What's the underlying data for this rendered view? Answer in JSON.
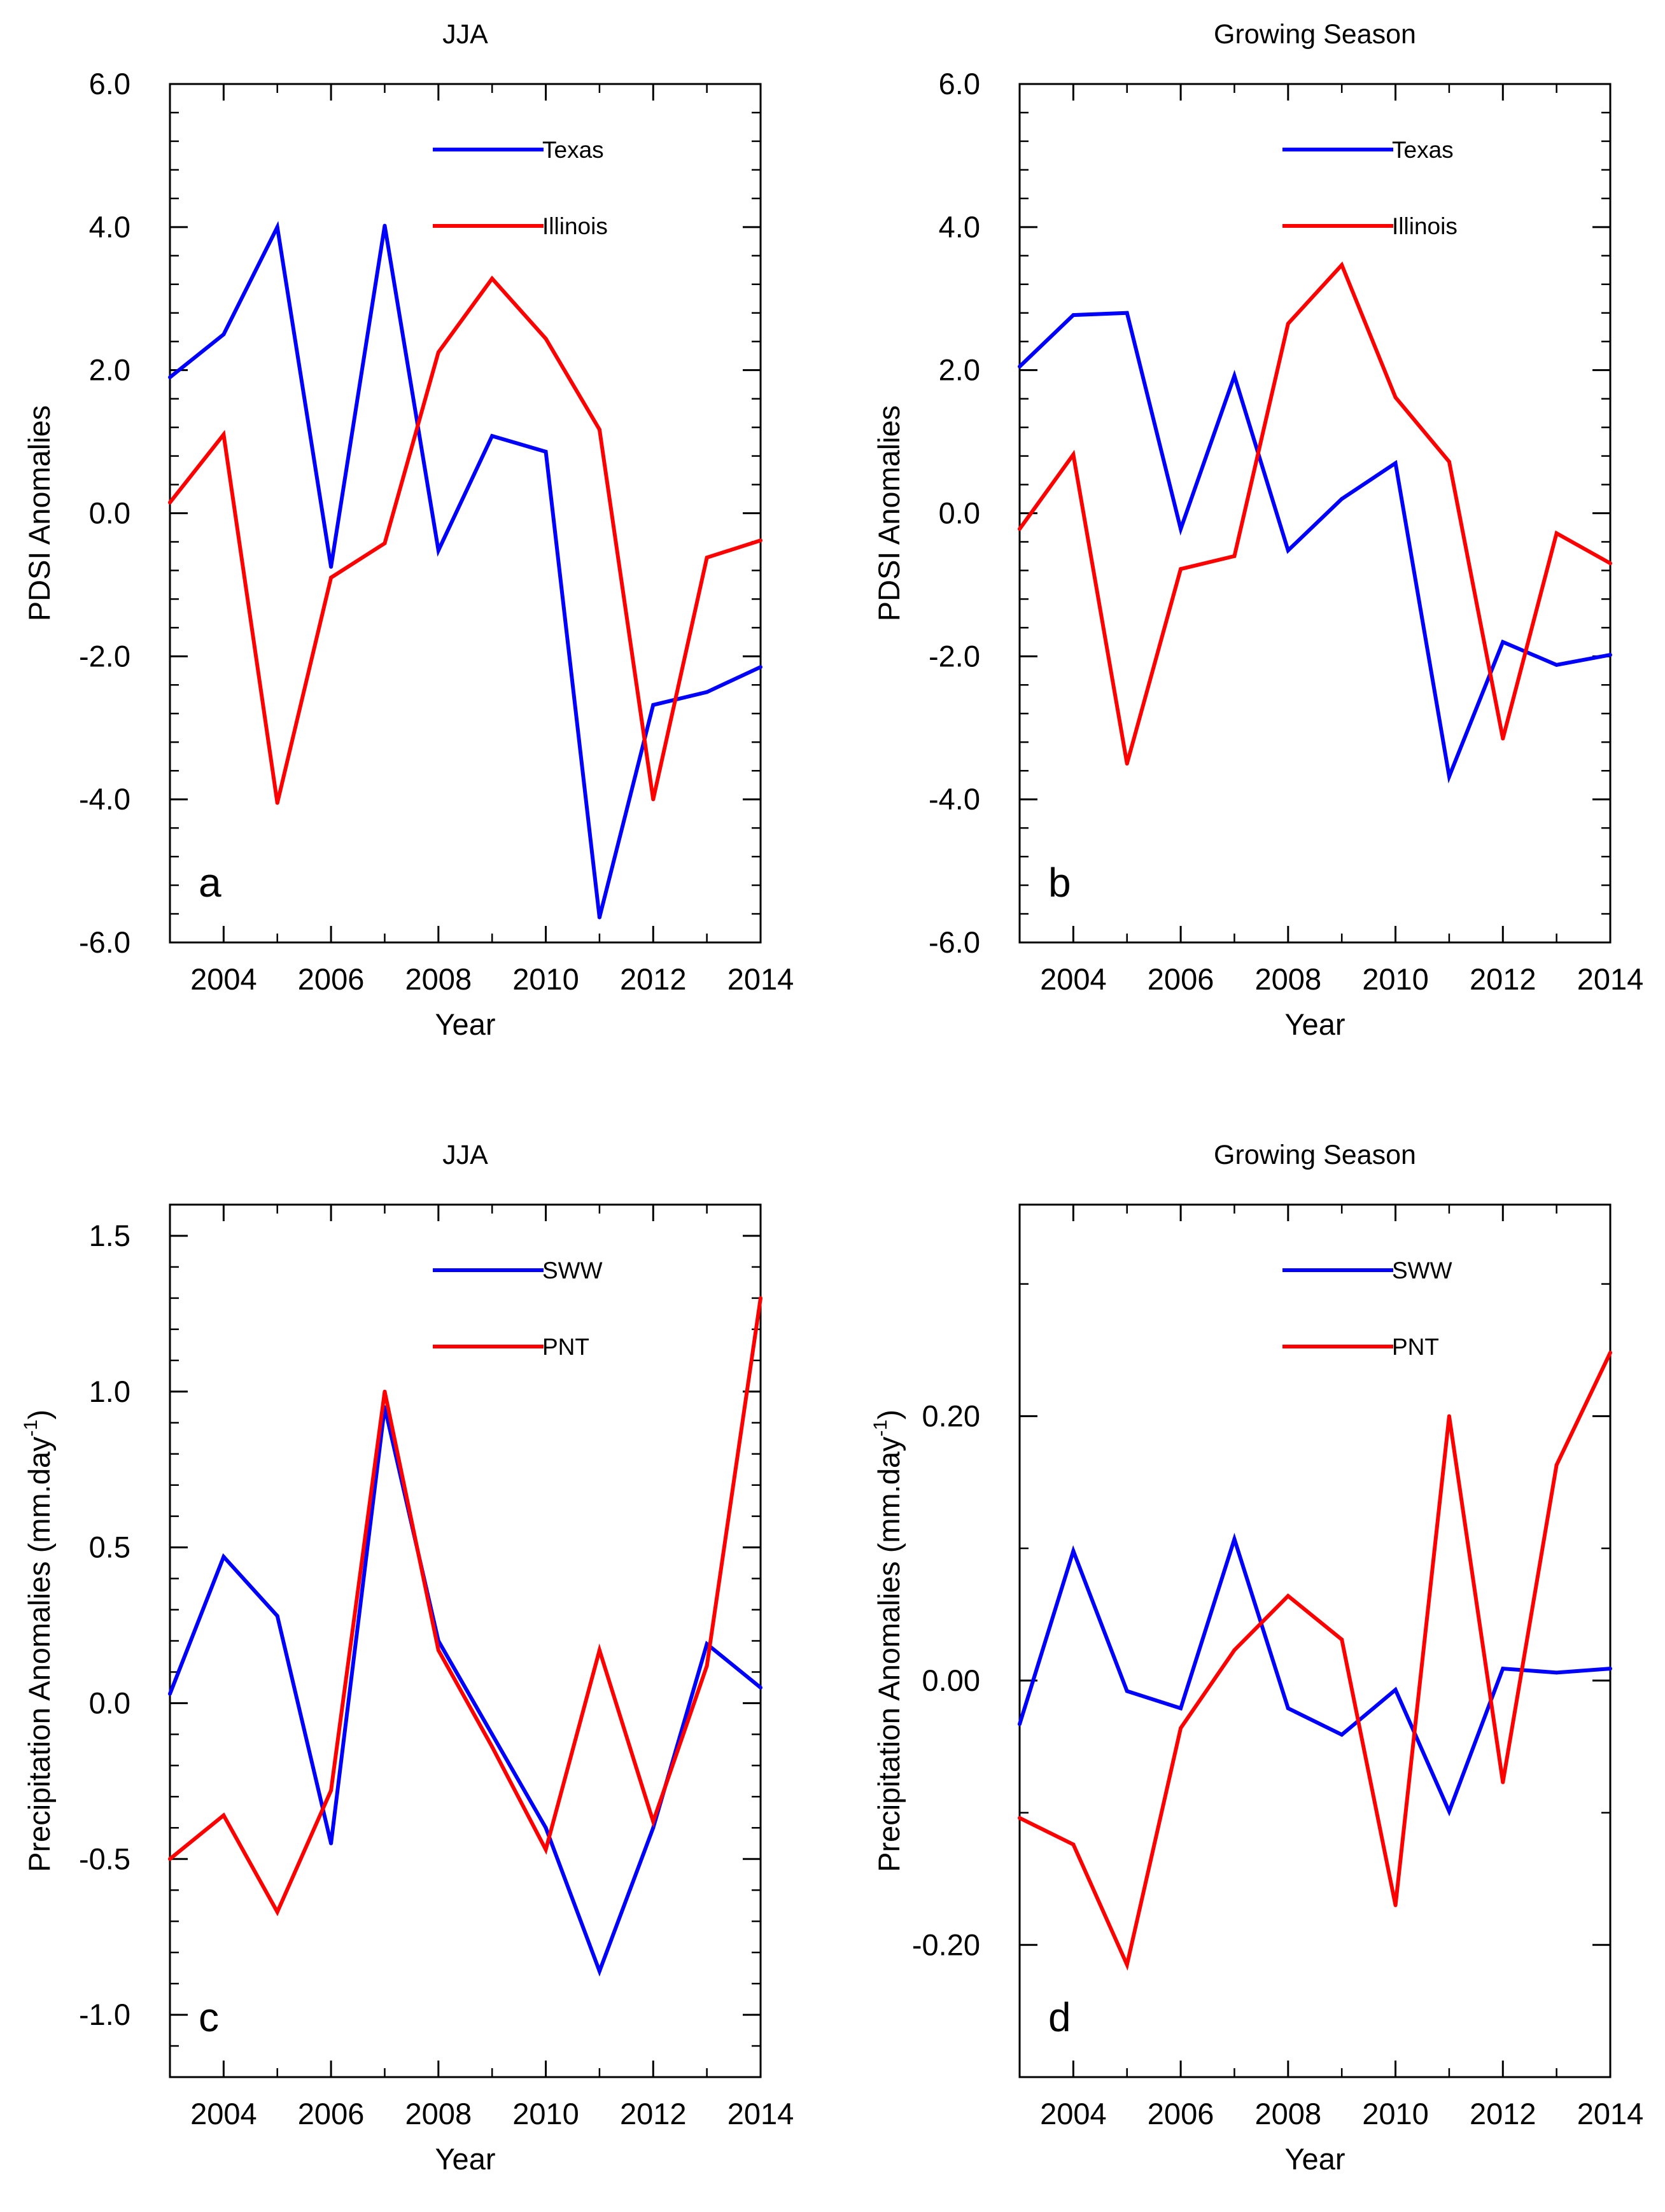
{
  "chart_data": [
    {
      "type": "line",
      "panel_label": "a",
      "title": "JJA",
      "xlabel": "Year",
      "ylabel": "PDSI Anomalies",
      "xlim": [
        2003,
        2014
      ],
      "ylim": [
        -6.0,
        6.0
      ],
      "x": [
        2003,
        2004,
        2005,
        2006,
        2007,
        2008,
        2009,
        2010,
        2011,
        2012,
        2013,
        2014
      ],
      "x_tick_values": [
        2004,
        2006,
        2008,
        2010,
        2012,
        2014
      ],
      "x_tick_labels": [
        "2004",
        "2006",
        "2008",
        "2010",
        "2012",
        "2014"
      ],
      "y_tick_values": [
        6.0,
        4.0,
        2.0,
        0.0,
        -2.0,
        -4.0,
        -6.0
      ],
      "y_tick_labels": [
        "6.0",
        "4.0",
        "2.0",
        "0.0",
        "-2.0",
        "-4.0",
        "-6.0"
      ],
      "y_minor_step": 0.4,
      "legend_position": "top-center",
      "series": [
        {
          "name": "Texas",
          "color": "#0000ff",
          "values": [
            1.9,
            2.5,
            4.0,
            -0.75,
            4.02,
            -0.52,
            1.08,
            0.86,
            -5.65,
            -2.68,
            -2.5,
            -2.15
          ]
        },
        {
          "name": "Illinois",
          "color": "#ff0000",
          "values": [
            0.15,
            1.1,
            -4.05,
            -0.9,
            -0.42,
            2.25,
            3.28,
            2.44,
            1.17,
            -4.0,
            -0.62,
            -0.38
          ]
        }
      ]
    },
    {
      "type": "line",
      "panel_label": "b",
      "title": "Growing Season",
      "xlabel": "Year",
      "ylabel": "PDSI Anomalies",
      "xlim": [
        2003,
        2014
      ],
      "ylim": [
        -6.0,
        6.0
      ],
      "x": [
        2003,
        2004,
        2005,
        2006,
        2007,
        2008,
        2009,
        2010,
        2011,
        2012,
        2013,
        2014
      ],
      "x_tick_values": [
        2004,
        2006,
        2008,
        2010,
        2012,
        2014
      ],
      "x_tick_labels": [
        "2004",
        "2006",
        "2008",
        "2010",
        "2012",
        "2014"
      ],
      "y_tick_values": [
        6.0,
        4.0,
        2.0,
        0.0,
        -2.0,
        -4.0,
        -6.0
      ],
      "y_tick_labels": [
        "6.0",
        "4.0",
        "2.0",
        "0.0",
        "-2.0",
        "-4.0",
        "-6.0"
      ],
      "y_minor_step": 0.4,
      "legend_position": "top-center",
      "series": [
        {
          "name": "Texas",
          "color": "#0000ff",
          "values": [
            2.05,
            2.77,
            2.8,
            -0.22,
            1.92,
            -0.52,
            0.2,
            0.7,
            -3.68,
            -1.8,
            -2.12,
            -1.98
          ]
        },
        {
          "name": "Illinois",
          "color": "#ff0000",
          "values": [
            -0.22,
            0.82,
            -3.5,
            -0.78,
            -0.6,
            2.65,
            3.47,
            1.62,
            0.72,
            -3.15,
            -0.28,
            -0.7
          ]
        }
      ]
    },
    {
      "type": "line",
      "panel_label": "c",
      "title": "JJA",
      "xlabel": "Year",
      "ylabel": "Precipitation Anomalies (mm.day",
      "ylabel_superscript": "-1",
      "ylabel_suffix": ")",
      "xlim": [
        2003,
        2014
      ],
      "ylim": [
        -1.2,
        1.6
      ],
      "x": [
        2003,
        2004,
        2005,
        2006,
        2007,
        2008,
        2009,
        2010,
        2011,
        2012,
        2013,
        2014
      ],
      "x_tick_values": [
        2004,
        2006,
        2008,
        2010,
        2012,
        2014
      ],
      "x_tick_labels": [
        "2004",
        "2006",
        "2008",
        "2010",
        "2012",
        "2014"
      ],
      "y_tick_values": [
        1.5,
        1.0,
        0.5,
        0.0,
        -0.5,
        -1.0
      ],
      "y_tick_labels": [
        "1.5",
        "1.0",
        "0.5",
        "0.0",
        "-0.5",
        "-1.0"
      ],
      "y_minor_step": 0.1,
      "legend_position": "top-center",
      "series": [
        {
          "name": "SWW",
          "color": "#0000ff",
          "values": [
            0.03,
            0.47,
            0.28,
            -0.45,
            0.95,
            0.2,
            -0.1,
            -0.4,
            -0.86,
            -0.4,
            0.19,
            0.05
          ]
        },
        {
          "name": "PNT",
          "color": "#ff0000",
          "values": [
            -0.5,
            -0.36,
            -0.67,
            -0.28,
            1.0,
            0.17,
            -0.14,
            -0.47,
            0.17,
            -0.38,
            0.12,
            1.3
          ]
        }
      ]
    },
    {
      "type": "line",
      "panel_label": "d",
      "title": "Growing Season",
      "xlabel": "Year",
      "ylabel": "Precipitation Anomalies (mm.day",
      "ylabel_superscript": "-1",
      "ylabel_suffix": ")",
      "xlim": [
        2003,
        2014
      ],
      "ylim": [
        -0.3,
        0.36
      ],
      "x": [
        2003,
        2004,
        2005,
        2006,
        2007,
        2008,
        2009,
        2010,
        2011,
        2012,
        2013,
        2014
      ],
      "x_tick_values": [
        2004,
        2006,
        2008,
        2010,
        2012,
        2014
      ],
      "x_tick_labels": [
        "2004",
        "2006",
        "2008",
        "2010",
        "2012",
        "2014"
      ],
      "y_tick_values": [
        0.2,
        0.0,
        -0.2
      ],
      "y_tick_labels": [
        "0.20",
        "0.00",
        "-0.20"
      ],
      "y_minor_step": 0.1,
      "legend_position": "top-center",
      "series": [
        {
          "name": "SWW",
          "color": "#0000ff",
          "values": [
            -0.033,
            0.098,
            -0.008,
            -0.021,
            0.107,
            -0.021,
            -0.041,
            -0.007,
            -0.099,
            0.009,
            0.006,
            0.009
          ]
        },
        {
          "name": "PNT",
          "color": "#ff0000",
          "values": [
            -0.104,
            -0.124,
            -0.215,
            -0.036,
            0.023,
            0.064,
            0.031,
            -0.17,
            0.2,
            -0.077,
            0.163,
            0.248
          ]
        }
      ]
    }
  ]
}
